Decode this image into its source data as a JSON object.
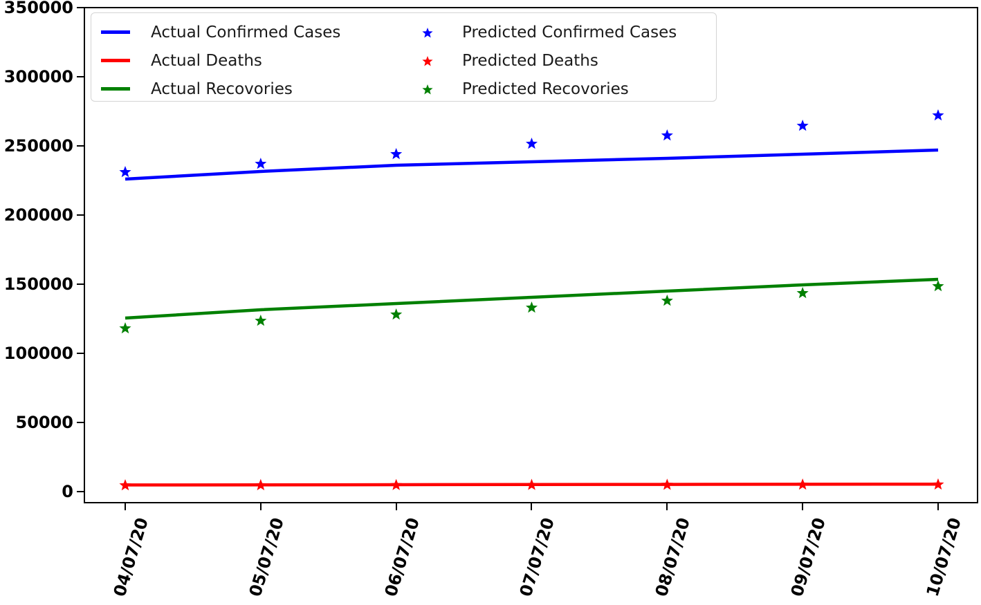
{
  "chart_data": {
    "type": "line",
    "title": "",
    "xlabel": "",
    "ylabel": "",
    "x_categories": [
      "04/07/20",
      "05/07/20",
      "06/07/20",
      "07/07/20",
      "08/07/20",
      "09/07/20",
      "10/07/20"
    ],
    "ylim": [
      0,
      350000
    ],
    "yticks": [
      0,
      50000,
      100000,
      150000,
      200000,
      250000,
      300000,
      350000
    ],
    "ytick_labels": [
      "0",
      "50000",
      "100000",
      "150000",
      "200000",
      "250000",
      "300000",
      "350000"
    ],
    "grid": false,
    "legend_position": "upper left",
    "legend_columns": 2,
    "series": [
      {
        "name": "Actual Confirmed Cases",
        "style": "line",
        "color": "#0000ff",
        "values": [
          226000,
          231500,
          236000,
          238500,
          241000,
          244000,
          247000
        ]
      },
      {
        "name": "Actual Deaths",
        "style": "line",
        "color": "#ff0000",
        "values": [
          4800,
          4900,
          5000,
          5100,
          5200,
          5300,
          5400
        ]
      },
      {
        "name": "Actual Recovories",
        "style": "line",
        "color": "#008000",
        "values": [
          125500,
          131500,
          136000,
          140500,
          145000,
          149500,
          153500
        ]
      },
      {
        "name": "Predicted Confirmed Cases",
        "style": "star",
        "color": "#0000ff",
        "values": [
          231000,
          237000,
          244000,
          251500,
          257500,
          264500,
          272000
        ]
      },
      {
        "name": "Predicted Deaths",
        "style": "star",
        "color": "#ff0000",
        "values": [
          4500,
          4600,
          4700,
          4800,
          4900,
          5000,
          5100
        ]
      },
      {
        "name": "Predicted Recovories",
        "style": "star",
        "color": "#008000",
        "values": [
          118000,
          123500,
          128000,
          133000,
          138000,
          143500,
          148500
        ]
      }
    ]
  }
}
